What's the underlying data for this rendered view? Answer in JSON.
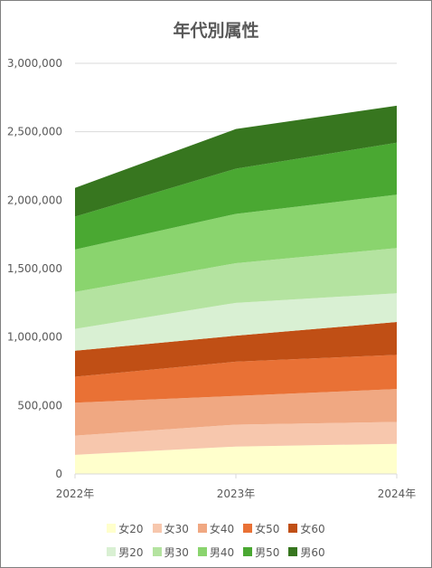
{
  "chart_data": {
    "type": "area",
    "stacked": true,
    "title": "年代別属性",
    "categories": [
      "2022年",
      "2023年",
      "2024年"
    ],
    "ylim": [
      0,
      3000000
    ],
    "yticks": [
      "0",
      "500,000",
      "1,000,000",
      "1,500,000",
      "2,000,000",
      "2,500,000",
      "3,000,000"
    ],
    "grid": true,
    "legend_position": "bottom",
    "series": [
      {
        "name": "女20",
        "color": "#ffffcc",
        "values": [
          140000,
          200000,
          220000
        ]
      },
      {
        "name": "女30",
        "color": "#f7c7ad",
        "values": [
          140000,
          160000,
          160000
        ]
      },
      {
        "name": "女40",
        "color": "#f0a882",
        "values": [
          240000,
          210000,
          240000
        ]
      },
      {
        "name": "女50",
        "color": "#e97135",
        "values": [
          190000,
          250000,
          250000
        ]
      },
      {
        "name": "女60",
        "color": "#c04f15",
        "values": [
          190000,
          190000,
          240000
        ]
      },
      {
        "name": "男20",
        "color": "#d9f0d3",
        "values": [
          160000,
          240000,
          210000
        ]
      },
      {
        "name": "男30",
        "color": "#b4e3a0",
        "values": [
          270000,
          290000,
          330000
        ]
      },
      {
        "name": "男40",
        "color": "#8ad46e",
        "values": [
          310000,
          360000,
          390000
        ]
      },
      {
        "name": "男50",
        "color": "#4aa832",
        "values": [
          240000,
          330000,
          380000
        ]
      },
      {
        "name": "男60",
        "color": "#37761f",
        "values": [
          210000,
          290000,
          270000
        ]
      }
    ]
  }
}
